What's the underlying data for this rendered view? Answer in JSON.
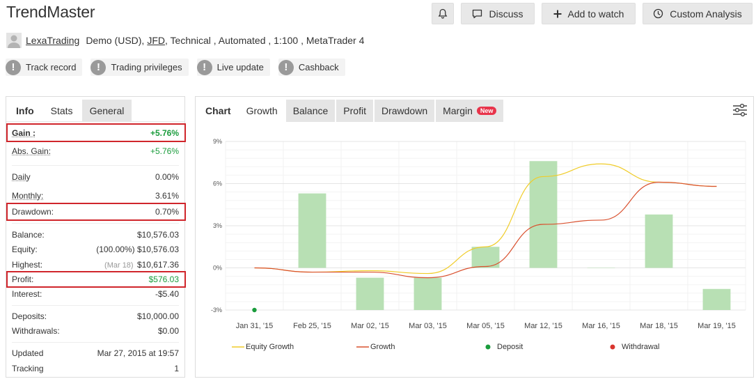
{
  "header": {
    "title": "TrendMaster",
    "bell_icon": "bell-icon",
    "discuss_label": "Discuss",
    "watch_label": "Add to watch",
    "analysis_label": "Custom Analysis"
  },
  "owner": {
    "username": "LexaTrading",
    "account_type": "Demo (USD),",
    "broker": "JFD",
    "details": ", Technical , Automated , 1:100 , MetaTrader 4"
  },
  "badges": [
    "Track record",
    "Trading privileges",
    "Live update",
    "Cashback"
  ],
  "left_tabs": [
    "Info",
    "Stats",
    "General"
  ],
  "stats": {
    "gain_label": "Gain :",
    "gain_value": "+5.76%",
    "abs_gain_label": "Abs. Gain:",
    "abs_gain_value": "+5.76%",
    "daily_label": "Daily",
    "daily_value": "0.00%",
    "monthly_label": "Monthly:",
    "monthly_value": "3.61%",
    "drawdown_label": "Drawdown:",
    "drawdown_value": "0.70%",
    "balance_label": "Balance:",
    "balance_value": "$10,576.03",
    "equity_label": "Equity:",
    "equity_pct": "(100.00%)",
    "equity_value": "$10,576.03",
    "highest_label": "Highest:",
    "highest_date": "(Mar 18)",
    "highest_value": "$10,617.36",
    "profit_label": "Profit:",
    "profit_value": "$576.03",
    "interest_label": "Interest:",
    "interest_value": "-$5.40",
    "deposits_label": "Deposits:",
    "deposits_value": "$10,000.00",
    "withdrawals_label": "Withdrawals:",
    "withdrawals_value": "$0.00",
    "updated_label": "Updated",
    "updated_value": "Mar 27, 2015 at 19:57",
    "tracking_label": "Tracking",
    "tracking_value": "1"
  },
  "chart_tabs": [
    "Chart",
    "Growth",
    "Balance",
    "Profit",
    "Drawdown",
    "Margin"
  ],
  "new_badge": "New",
  "colors": {
    "bar": "#b8e0b4",
    "equity_line": "#f0cc28",
    "growth_line": "#d9502e",
    "deposit": "#1a9c3c",
    "withdrawal": "#d9352e",
    "highlight": "#d0252b"
  },
  "chart_data": {
    "type": "bar",
    "categories": [
      "Jan 31, '15",
      "Feb 25, '15",
      "Mar 02, '15",
      "Mar 03, '15",
      "Mar 05, '15",
      "Mar 12, '15",
      "Mar 16, '15",
      "Mar 18, '15",
      "Mar 19, '15"
    ],
    "y_tick_labels": [
      "9%",
      "6%",
      "3%",
      "0%",
      "-3%"
    ],
    "y_ticks": [
      9,
      6,
      3,
      0,
      -3
    ],
    "ylim": [
      -3,
      9
    ],
    "grid": true,
    "legend_position": "bottom",
    "series": [
      {
        "name": "Growth bars",
        "type": "bar",
        "values": [
          null,
          5.3,
          -0.7,
          -0.7,
          1.5,
          7.6,
          0.0,
          3.8,
          -1.5
        ]
      },
      {
        "name": "Equity Growth",
        "type": "line",
        "values": [
          0.0,
          -0.3,
          -0.2,
          -0.4,
          1.5,
          6.5,
          7.4,
          6.1,
          5.8
        ]
      },
      {
        "name": "Growth",
        "type": "line",
        "values": [
          0.0,
          -0.3,
          -0.3,
          -0.7,
          0.1,
          3.1,
          3.4,
          6.1,
          5.8
        ]
      },
      {
        "name": "Deposit",
        "type": "scatter",
        "points": [
          {
            "x": "Jan 31, '15",
            "y": -3.0
          }
        ]
      },
      {
        "name": "Withdrawal",
        "type": "scatter",
        "points": []
      }
    ],
    "legend": [
      "Equity Growth",
      "Growth",
      "Deposit",
      "Withdrawal"
    ]
  }
}
